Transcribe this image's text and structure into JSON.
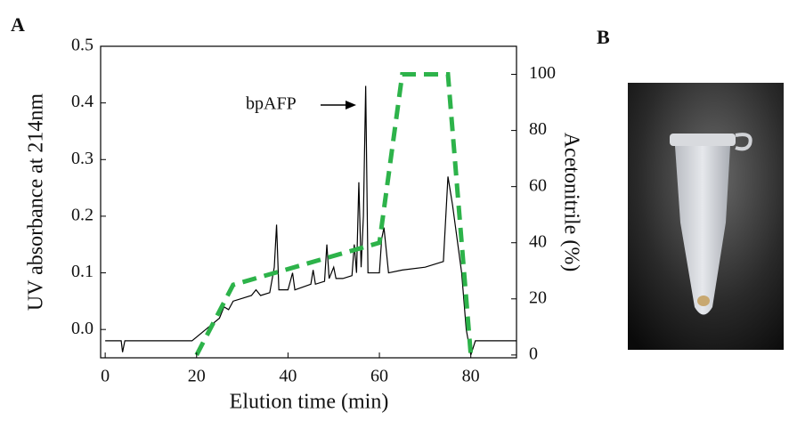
{
  "chart_data": {
    "type": "line",
    "panel_label": "A",
    "photo_label": "B",
    "xlabel": "Elution time (min)",
    "ylabel": "UV absorbance at 214nm",
    "y2label": "Acetonitrile (%)",
    "annotation": "bpAFP",
    "xlim": [
      -1,
      90
    ],
    "xticks": [
      0,
      20,
      40,
      60,
      80
    ],
    "ylim": [
      -0.05,
      0.5
    ],
    "yticks": [
      {
        "value": 0,
        "label": "0.0"
      },
      0.1,
      0.2,
      0.3,
      0.4,
      0.5
    ],
    "y2lim": [
      -1,
      110
    ],
    "y2ticks": [
      0,
      20,
      40,
      60,
      80,
      100
    ],
    "series": [
      {
        "color": "#000000",
        "dash": false,
        "axis": "y",
        "x": [
          0,
          3.5,
          3.8,
          4.3,
          15,
          19,
          22,
          25,
          26,
          27,
          28,
          30,
          32,
          33,
          34,
          36,
          37,
          37.5,
          38,
          40,
          41,
          41.5,
          45,
          45.5,
          46,
          48,
          48.5,
          49,
          50,
          50.5,
          52,
          54,
          54.5,
          55,
          55.5,
          56,
          56.5,
          57,
          57.5,
          60,
          60.5,
          61,
          62,
          65,
          70,
          74,
          75,
          76,
          78,
          79,
          80,
          81,
          90
        ],
        "values": [
          -0.02,
          -0.02,
          -0.04,
          -0.02,
          -0.02,
          -0.02,
          0,
          0.02,
          0.04,
          0.035,
          0.05,
          0.055,
          0.06,
          0.07,
          0.06,
          0.065,
          0.11,
          0.185,
          0.07,
          0.07,
          0.1,
          0.07,
          0.08,
          0.105,
          0.08,
          0.085,
          0.15,
          0.09,
          0.11,
          0.09,
          0.09,
          0.095,
          0.15,
          0.1,
          0.26,
          0.11,
          0.2,
          0.43,
          0.1,
          0.1,
          0.16,
          0.18,
          0.1,
          0.105,
          0.11,
          0.12,
          0.27,
          0.22,
          0.1,
          0,
          -0.045,
          -0.02,
          -0.02
        ]
      },
      {
        "color": "#2db34a",
        "dash": true,
        "axis": "y2",
        "x": [
          20,
          28,
          60,
          65,
          75,
          80
        ],
        "values": [
          0,
          25,
          40,
          100,
          100,
          0
        ]
      }
    ]
  }
}
